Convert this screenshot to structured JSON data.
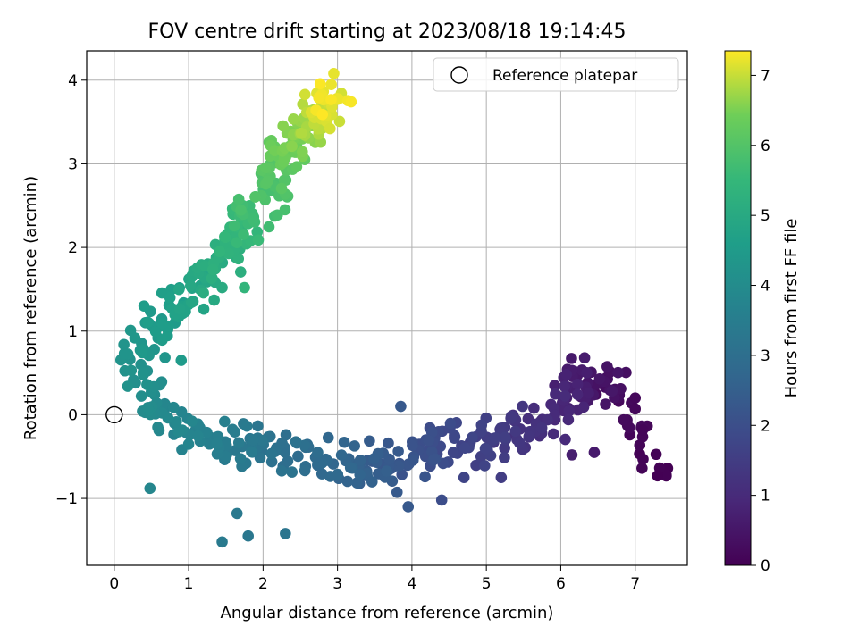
{
  "chart_data": {
    "type": "scatter",
    "title": "FOV centre drift starting at 2023/08/18 19:14:45",
    "xlabel": "Angular distance from reference (arcmin)",
    "ylabel": "Rotation from reference (arcmin)",
    "xlim": [
      -0.37,
      7.7
    ],
    "ylim": [
      -1.8,
      4.35
    ],
    "xticks": [
      0,
      1,
      2,
      3,
      4,
      5,
      6,
      7
    ],
    "yticks": [
      -1,
      0,
      1,
      2,
      3,
      4
    ],
    "grid": true,
    "legend": {
      "placement": "top-right",
      "entries": [
        "Reference platepar"
      ]
    },
    "reference_point": {
      "x": 0,
      "y": 0
    },
    "colorbar": {
      "label": "Hours from first FF file",
      "range": [
        0,
        7.35
      ],
      "ticks": [
        0,
        1,
        2,
        3,
        4,
        5,
        6,
        7
      ],
      "colormap": "viridis"
    },
    "path": [
      {
        "t": 0.0,
        "x": 7.3,
        "y": -0.73
      },
      {
        "t": 0.3,
        "x": 6.7,
        "y": 0.35
      },
      {
        "t": 0.6,
        "x": 6.3,
        "y": 0.45
      },
      {
        "t": 0.9,
        "x": 6.0,
        "y": 0.1
      },
      {
        "t": 1.2,
        "x": 5.6,
        "y": -0.15
      },
      {
        "t": 1.5,
        "x": 5.1,
        "y": -0.3
      },
      {
        "t": 1.8,
        "x": 4.6,
        "y": -0.35
      },
      {
        "t": 2.1,
        "x": 4.1,
        "y": -0.5
      },
      {
        "t": 2.4,
        "x": 3.6,
        "y": -0.65
      },
      {
        "t": 2.7,
        "x": 3.1,
        "y": -0.6
      },
      {
        "t": 3.0,
        "x": 2.4,
        "y": -0.45
      },
      {
        "t": 3.3,
        "x": 1.8,
        "y": -0.4
      },
      {
        "t": 3.6,
        "x": 1.2,
        "y": -0.3
      },
      {
        "t": 3.9,
        "x": 0.6,
        "y": -0.05
      },
      {
        "t": 4.1,
        "x": 0.35,
        "y": 0.3
      },
      {
        "t": 4.3,
        "x": 0.35,
        "y": 0.75
      },
      {
        "t": 4.6,
        "x": 0.75,
        "y": 1.25
      },
      {
        "t": 5.0,
        "x": 1.25,
        "y": 1.65
      },
      {
        "t": 5.4,
        "x": 1.6,
        "y": 2.1
      },
      {
        "t": 5.8,
        "x": 2.0,
        "y": 2.55
      },
      {
        "t": 6.2,
        "x": 2.25,
        "y": 3.05
      },
      {
        "t": 6.6,
        "x": 2.5,
        "y": 3.35
      },
      {
        "t": 7.0,
        "x": 2.8,
        "y": 3.6
      },
      {
        "t": 7.35,
        "x": 2.95,
        "y": 3.75
      }
    ],
    "spread": {
      "x": 0.22,
      "y": 0.17
    },
    "n_points": 620,
    "outliers": [
      {
        "x": 7.3,
        "y": -0.73,
        "t": 0.0
      },
      {
        "x": 7.1,
        "y": -0.18,
        "t": 0.1
      },
      {
        "x": 7.0,
        "y": 0.2,
        "t": 0.15
      },
      {
        "x": 7.0,
        "y": 0.07,
        "t": 0.15
      },
      {
        "x": 6.45,
        "y": -0.45,
        "t": 0.6
      },
      {
        "x": 6.15,
        "y": -0.48,
        "t": 0.7
      },
      {
        "x": 5.2,
        "y": -0.75,
        "t": 1.5
      },
      {
        "x": 4.7,
        "y": -0.75,
        "t": 1.7
      },
      {
        "x": 4.4,
        "y": -1.02,
        "t": 1.95
      },
      {
        "x": 3.85,
        "y": 0.1,
        "t": 2.3
      },
      {
        "x": 3.95,
        "y": -1.1,
        "t": 2.3
      },
      {
        "x": 2.3,
        "y": -1.42,
        "t": 3.2
      },
      {
        "x": 1.45,
        "y": -1.52,
        "t": 3.4
      },
      {
        "x": 1.8,
        "y": -1.45,
        "t": 3.3
      },
      {
        "x": 1.65,
        "y": -1.18,
        "t": 3.35
      },
      {
        "x": 0.48,
        "y": -0.88,
        "t": 3.8
      },
      {
        "x": 2.95,
        "y": 4.08,
        "t": 7.2
      },
      {
        "x": 2.9,
        "y": 3.42,
        "t": 7.1
      },
      {
        "x": 1.45,
        "y": 1.52,
        "t": 5.05
      },
      {
        "x": 1.75,
        "y": 1.52,
        "t": 5.4
      },
      {
        "x": 0.9,
        "y": 0.65,
        "t": 4.5
      },
      {
        "x": 0.4,
        "y": 1.3,
        "t": 4.55
      }
    ]
  }
}
